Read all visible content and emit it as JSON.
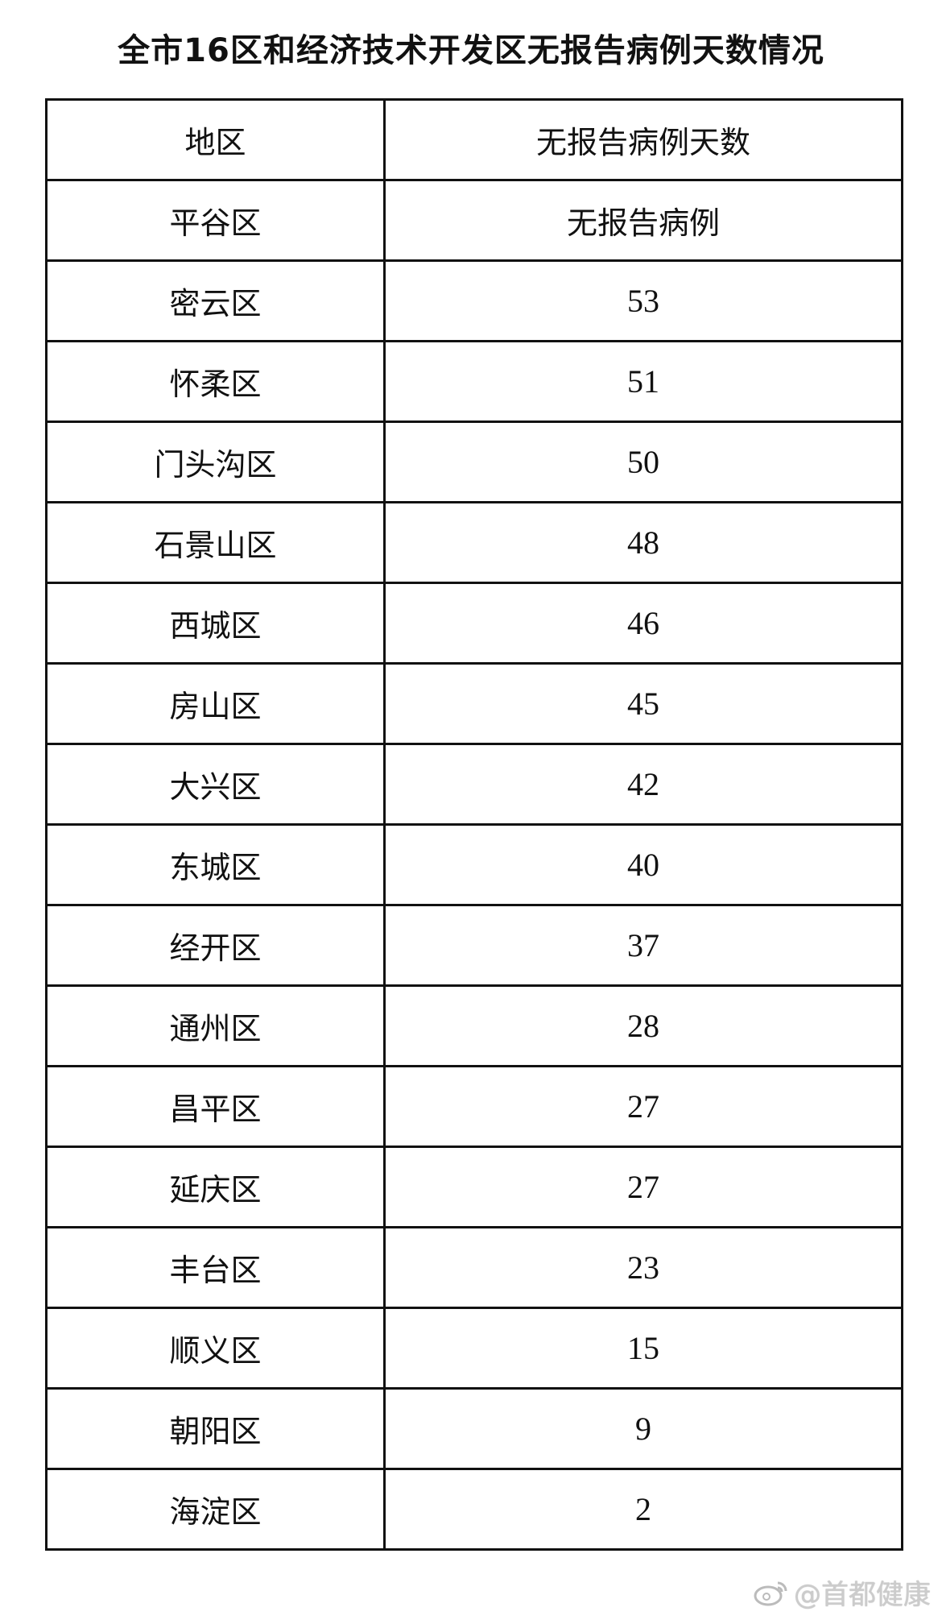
{
  "title": "全市16区和经济技术开发区无报告病例天数情况",
  "table": {
    "headers": [
      "地区",
      "无报告病例天数"
    ],
    "rows": [
      [
        "平谷区",
        "无报告病例"
      ],
      [
        "密云区",
        "53"
      ],
      [
        "怀柔区",
        "51"
      ],
      [
        "门头沟区",
        "50"
      ],
      [
        "石景山区",
        "48"
      ],
      [
        "西城区",
        "46"
      ],
      [
        "房山区",
        "45"
      ],
      [
        "大兴区",
        "42"
      ],
      [
        "东城区",
        "40"
      ],
      [
        "经开区",
        "37"
      ],
      [
        "通州区",
        "28"
      ],
      [
        "昌平区",
        "27"
      ],
      [
        "延庆区",
        "27"
      ],
      [
        "丰台区",
        "23"
      ],
      [
        "顺义区",
        "15"
      ],
      [
        "朝阳区",
        "9"
      ],
      [
        "海淀区",
        "2"
      ]
    ]
  },
  "watermark": {
    "icon": "weibo-icon",
    "text": "@首都健康"
  }
}
